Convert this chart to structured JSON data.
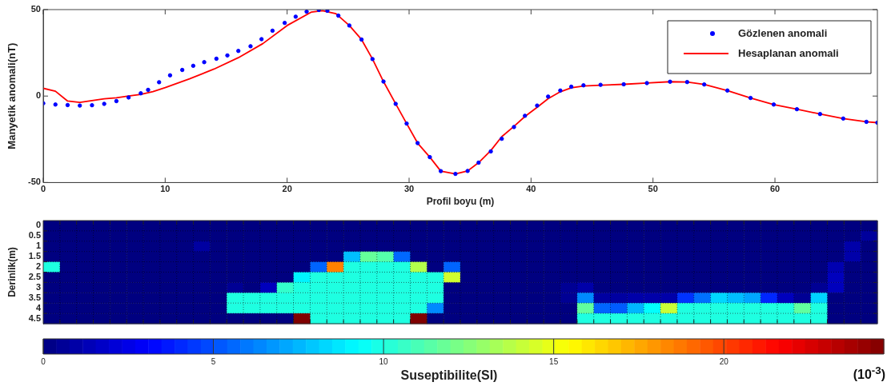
{
  "chart_data": [
    {
      "type": "line",
      "xlabel": "Profil boyu (m)",
      "ylabel": "Manyetik anomali(nT)",
      "xlim": [
        0,
        68.4
      ],
      "xticks": [
        0,
        10,
        20,
        30,
        40,
        50,
        60
      ],
      "ylim": [
        -50,
        50
      ],
      "yticks": [
        -50,
        0,
        50
      ],
      "legend": "top right",
      "series": [
        {
          "name": "Gözlenen anomali",
          "type": "scatter",
          "marker": "circle",
          "color": "#0000ff",
          "x": [
            0,
            1,
            2,
            3,
            4,
            5,
            6,
            7,
            8,
            8.6,
            9.5,
            10.4,
            11.4,
            12.3,
            13.2,
            14.2,
            15.1,
            16,
            17,
            17.9,
            18.8,
            19.8,
            20.7,
            21.6,
            22.6,
            23.3,
            24.2,
            25.1,
            26.1,
            27,
            27.9,
            28.9,
            29.8,
            30.7,
            31.7,
            32.6,
            33.8,
            34.8,
            35.7,
            36.7,
            37.6,
            38.6,
            39.5,
            40.5,
            41.4,
            42.4,
            43.3,
            44.3,
            45.7,
            47.6,
            49.5,
            51.4,
            52.8,
            54.2,
            56.1,
            58,
            59.9,
            61.8,
            63.7,
            65.6,
            67.5,
            68.4
          ],
          "values": [
            -4.2,
            -4.9,
            -5.2,
            -5.5,
            -5.3,
            -4.5,
            -2.9,
            -0.8,
            1.6,
            3.6,
            8,
            12,
            15.1,
            17.5,
            19.6,
            21.6,
            23.5,
            26.1,
            28.8,
            32.9,
            37.8,
            42.3,
            45.9,
            48.8,
            49.8,
            49.3,
            46.5,
            40.8,
            32.7,
            21.4,
            8.4,
            -4.5,
            -15.9,
            -27.2,
            -35.3,
            -43.4,
            -45,
            -43.3,
            -38.5,
            -32,
            -24.7,
            -17.9,
            -11.4,
            -5.5,
            -0.3,
            3.2,
            5.4,
            6.2,
            6.5,
            6.8,
            7.5,
            8.3,
            8.1,
            6.7,
            3.2,
            -1.1,
            -4.9,
            -7.6,
            -10.4,
            -13,
            -14.9,
            -15.4
          ]
        },
        {
          "name": "Hesaplanan anomali",
          "type": "line",
          "color": "#ff0000",
          "x": [
            0,
            1,
            2,
            3,
            4,
            5,
            6,
            7,
            8,
            9,
            10,
            12,
            14,
            16,
            18,
            20,
            22,
            22.9,
            24,
            25.1,
            26.1,
            27,
            27.9,
            28.9,
            29.8,
            30.7,
            31.7,
            32.6,
            33.8,
            34.8,
            35.7,
            36.7,
            37.6,
            38.6,
            39.5,
            40.5,
            41.4,
            42.4,
            43.3,
            44.3,
            45.7,
            47.6,
            49.5,
            51.4,
            52.8,
            54.2,
            56.1,
            58,
            59.9,
            61.8,
            63.7,
            65.6,
            67.5,
            68.4
          ],
          "values": [
            4.5,
            2.8,
            -2.9,
            -3.7,
            -2.6,
            -1.6,
            -1,
            0,
            1,
            2.6,
            4.9,
            10,
            15.6,
            22.2,
            30.3,
            40.8,
            48.6,
            49.4,
            47.6,
            40.8,
            32.7,
            21.4,
            8.4,
            -4.5,
            -15.9,
            -27.2,
            -35.3,
            -43.4,
            -45,
            -43.3,
            -38.5,
            -31.5,
            -23.5,
            -17.5,
            -11.8,
            -6.5,
            -1.5,
            2.5,
            4.8,
            5.8,
            6.3,
            6.8,
            7.5,
            8.3,
            8.1,
            6.7,
            3.2,
            -1.1,
            -4.9,
            -7.6,
            -10.4,
            -13,
            -14.9,
            -15.4
          ]
        }
      ]
    },
    {
      "type": "heatmap",
      "ylabel": "Derinlik(m)",
      "clabel": "Suseptibilite(SI)",
      "annotations": [
        "(10$^{-3}$)"
      ],
      "tick_labels": "y",
      "grid": true,
      "clim": [
        0,
        24.7
      ],
      "cticks": [
        0,
        5,
        10,
        15,
        20
      ],
      "categories": [
        null,
        null,
        null,
        null,
        null,
        null,
        null,
        null,
        null,
        null,
        null,
        null,
        null,
        null,
        null,
        null,
        null,
        null,
        null,
        null,
        null,
        null,
        null,
        null,
        null,
        null,
        null,
        null,
        null,
        null,
        null,
        null,
        null,
        null,
        null,
        null,
        null,
        null,
        null,
        null,
        null,
        null,
        null,
        null,
        null,
        null,
        null,
        null,
        null,
        null
      ],
      "y_categories": [
        "0",
        "0.5",
        "1",
        "1.5",
        "2",
        "2.5",
        "3",
        "3.5",
        "4",
        "4.5"
      ],
      "cells": [
        [
          0,
          0,
          0,
          0,
          0,
          0,
          0,
          0,
          0,
          0,
          0,
          0,
          0,
          0,
          0,
          0,
          0,
          0,
          0,
          0,
          0,
          0,
          0,
          0,
          0,
          0,
          0,
          0,
          0,
          0,
          0,
          0,
          0,
          0,
          0,
          0,
          0,
          0,
          0,
          0,
          0,
          0,
          0,
          0,
          0,
          0,
          0,
          0,
          0,
          0
        ],
        [
          0,
          0,
          0,
          0,
          0,
          0,
          0,
          0,
          0,
          0,
          0,
          0,
          0,
          0,
          0,
          0,
          0,
          0,
          0,
          0,
          0,
          0,
          0,
          0,
          0,
          0,
          0,
          0,
          0,
          0,
          0,
          0,
          0,
          0,
          0,
          0,
          0,
          0,
          0,
          0,
          0,
          0,
          0,
          0,
          0,
          0,
          0,
          0,
          0,
          0.7
        ],
        [
          0,
          0,
          0,
          0,
          0,
          0,
          0,
          0,
          0,
          0.8,
          0,
          0,
          0,
          0,
          0,
          0,
          0,
          0,
          0,
          0,
          0,
          0,
          0,
          0,
          0,
          0,
          0,
          0,
          0,
          0,
          0,
          0,
          0,
          0,
          0,
          0,
          0,
          0,
          0,
          0,
          0,
          0,
          0,
          0,
          0,
          0,
          0,
          0,
          1,
          0
        ],
        [
          0,
          0,
          0,
          0,
          0,
          0,
          0,
          0,
          0,
          0,
          0,
          0,
          0,
          0,
          0,
          0,
          0,
          0,
          7.7,
          11.7,
          11.3,
          5.6,
          0,
          0,
          0,
          0,
          0,
          0,
          0,
          0,
          0,
          0,
          0,
          0,
          0,
          0,
          0,
          0,
          0,
          0,
          0,
          0,
          0,
          0,
          0,
          0,
          0,
          0,
          1,
          0
        ],
        [
          10,
          0,
          0,
          0,
          0,
          0,
          0,
          0,
          0,
          0,
          0,
          0,
          0,
          0,
          0,
          0,
          5.5,
          18.5,
          10,
          10,
          10,
          10,
          13.6,
          0,
          5.5,
          0,
          0,
          0,
          0,
          0,
          0,
          0,
          0,
          0,
          0,
          0,
          0,
          0,
          0,
          0,
          0,
          0,
          0,
          0,
          0,
          0,
          0,
          1.2,
          0,
          0
        ],
        [
          0,
          0,
          0,
          0,
          0,
          0,
          0,
          0,
          0,
          0,
          0,
          0,
          0,
          0,
          0,
          9,
          10,
          10,
          10,
          10,
          10,
          10,
          10,
          10,
          14.3,
          0,
          0,
          0,
          0,
          0,
          0,
          0,
          0,
          0,
          0,
          0,
          0,
          0,
          0,
          0,
          0,
          0,
          0,
          0,
          0,
          0,
          0,
          1.5,
          0,
          0
        ],
        [
          0,
          0,
          0,
          0,
          0,
          0,
          0,
          0,
          0,
          0,
          0,
          0.5,
          0,
          1.5,
          10.5,
          10,
          10,
          10,
          10,
          10,
          10,
          10,
          10,
          10,
          0,
          0,
          0,
          0,
          0,
          0,
          0,
          0.5,
          1,
          0,
          0,
          0,
          0,
          0,
          0,
          0,
          0,
          0,
          0,
          0,
          0,
          0,
          0.5,
          1.5,
          0,
          0
        ],
        [
          0,
          0,
          0,
          0,
          0,
          0,
          0,
          0,
          0,
          0,
          0,
          10,
          10,
          10,
          10,
          10,
          10,
          10,
          10,
          10,
          10,
          10,
          10,
          10,
          0,
          0,
          0,
          0,
          0,
          0,
          0,
          0.5,
          6.4,
          0.8,
          0.8,
          1,
          1,
          1,
          4.3,
          5.8,
          8.3,
          7.7,
          7.1,
          4,
          1.5,
          0.5,
          8.2,
          0,
          0,
          0
        ],
        [
          0,
          0,
          0,
          0,
          0,
          0,
          0,
          0,
          0,
          0,
          0,
          10,
          10,
          10,
          10,
          10,
          10,
          10,
          10,
          10,
          10,
          10,
          10,
          6.4,
          0,
          0,
          0,
          0,
          0,
          0,
          0,
          0,
          11.6,
          5.5,
          5.3,
          7.5,
          9.3,
          14.1,
          10,
          10,
          10,
          10,
          10,
          10,
          10,
          11.6,
          10,
          0,
          0,
          0
        ],
        [
          0,
          0,
          0,
          0,
          0,
          0,
          0,
          0,
          0,
          0,
          0,
          0,
          0,
          0,
          0,
          24.7,
          10,
          10,
          10,
          10,
          10,
          10,
          24.7,
          0,
          0,
          0,
          0,
          0,
          0,
          0,
          0,
          0,
          10,
          10,
          10,
          10,
          10,
          10,
          10,
          10,
          10,
          10,
          10,
          10,
          10,
          10,
          10,
          0,
          0,
          0
        ]
      ]
    }
  ]
}
